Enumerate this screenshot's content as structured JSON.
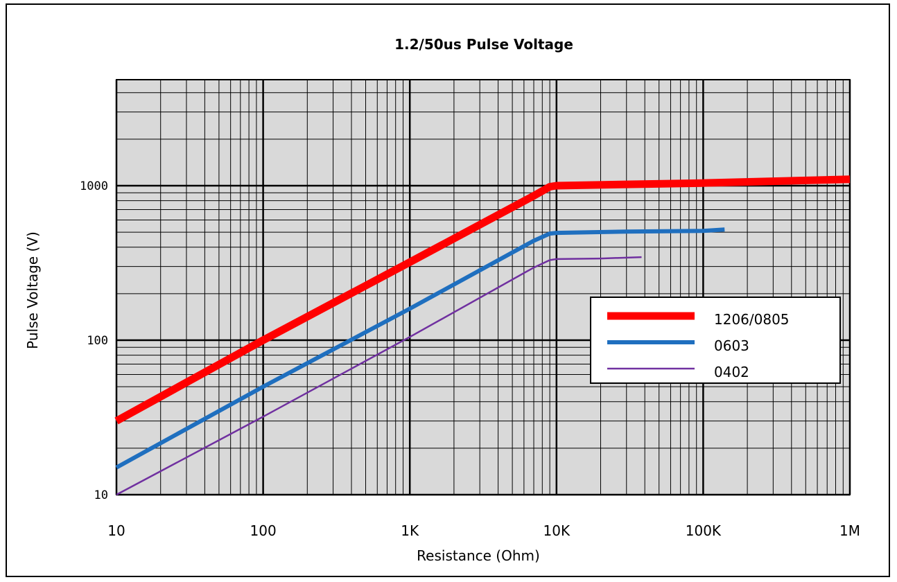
{
  "chart_data": {
    "type": "line",
    "title": "1.2/50us Pulse Voltage",
    "xlabel": "Resistance (Ohm)",
    "ylabel": "Pulse Voltage (V)",
    "x_scale": "log",
    "y_scale": "log",
    "xlim": [
      10,
      1000000
    ],
    "ylim": [
      10,
      5000
    ],
    "x_ticks": [
      10,
      100,
      1000,
      10000,
      100000,
      1000000
    ],
    "x_tick_labels": [
      "10",
      "100",
      "1K",
      "10K",
      "100K",
      "1M"
    ],
    "y_ticks": [
      10,
      100,
      1000
    ],
    "y_tick_labels": [
      "10",
      "100",
      "1000"
    ],
    "grid": true,
    "legend_position": "right",
    "series": [
      {
        "name": "1206/0805",
        "color": "#ff0000",
        "width": "thick",
        "x": [
          10,
          100,
          1000,
          7000,
          9000,
          10000,
          30000,
          100000,
          1000000
        ],
        "y": [
          30,
          100,
          320,
          860,
          985,
          1000,
          1020,
          1040,
          1100
        ]
      },
      {
        "name": "0603",
        "color": "#1f6fbf",
        "width": "medium",
        "x": [
          10,
          100,
          1000,
          7000,
          9000,
          10000,
          30000,
          100000,
          140000
        ],
        "y": [
          15,
          50,
          160,
          440,
          490,
          495,
          505,
          510,
          520
        ]
      },
      {
        "name": "0402",
        "color": "#7030a0",
        "width": "thin",
        "x": [
          10,
          100,
          1000,
          7000,
          9000,
          10000,
          20000,
          38000
        ],
        "y": [
          10,
          32,
          105,
          295,
          330,
          335,
          338,
          345
        ]
      }
    ]
  }
}
